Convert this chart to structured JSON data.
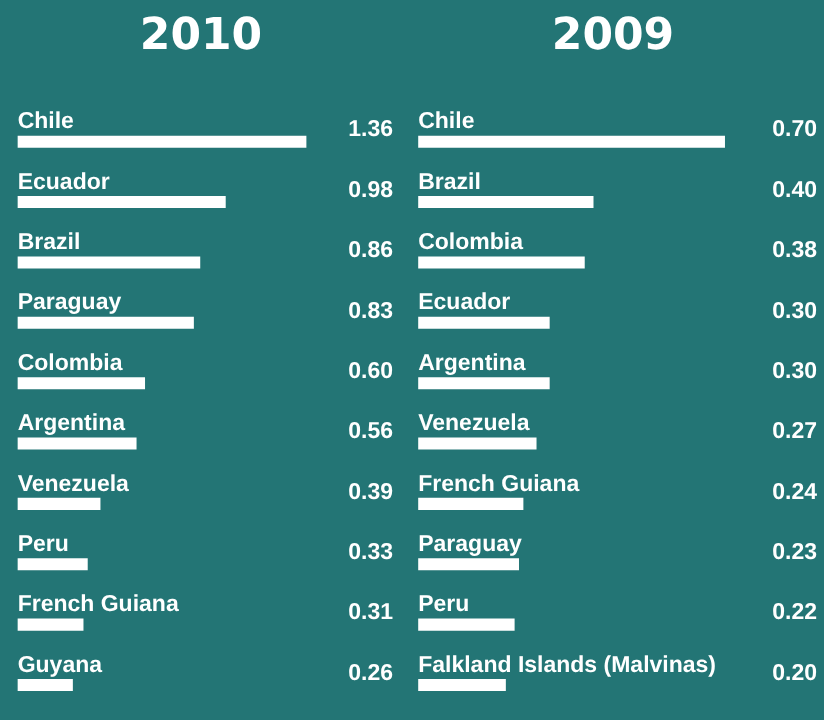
{
  "chart_data": [
    {
      "type": "bar",
      "orientation": "horizontal",
      "title": "2010",
      "categories": [
        "Chile",
        "Ecuador",
        "Brazil",
        "Paraguay",
        "Colombia",
        "Argentina",
        "Venezuela",
        "Peru",
        "French Guiana",
        "Guyana"
      ],
      "values": [
        1.36,
        0.98,
        0.86,
        0.83,
        0.6,
        0.56,
        0.39,
        0.33,
        0.31,
        0.26
      ],
      "color": "#ffffff",
      "value_labels": [
        "1.36",
        "0.98",
        "0.86",
        "0.83",
        "0.60",
        "0.56",
        "0.39",
        "0.33",
        "0.31",
        "0.26"
      ]
    },
    {
      "type": "bar",
      "orientation": "horizontal",
      "title": "2009",
      "categories": [
        "Chile",
        "Brazil",
        "Colombia",
        "Ecuador",
        "Argentina",
        "Venezuela",
        "French Guiana",
        "Paraguay",
        "Peru",
        "Falkland Islands (Malvinas)"
      ],
      "values": [
        0.7,
        0.4,
        0.38,
        0.3,
        0.3,
        0.27,
        0.24,
        0.23,
        0.22,
        0.2
      ],
      "color": "#ffffff",
      "value_labels": [
        "0.70",
        "0.40",
        "0.38",
        "0.30",
        "0.30",
        "0.27",
        "0.24",
        "0.23",
        "0.22",
        "0.20"
      ]
    }
  ]
}
